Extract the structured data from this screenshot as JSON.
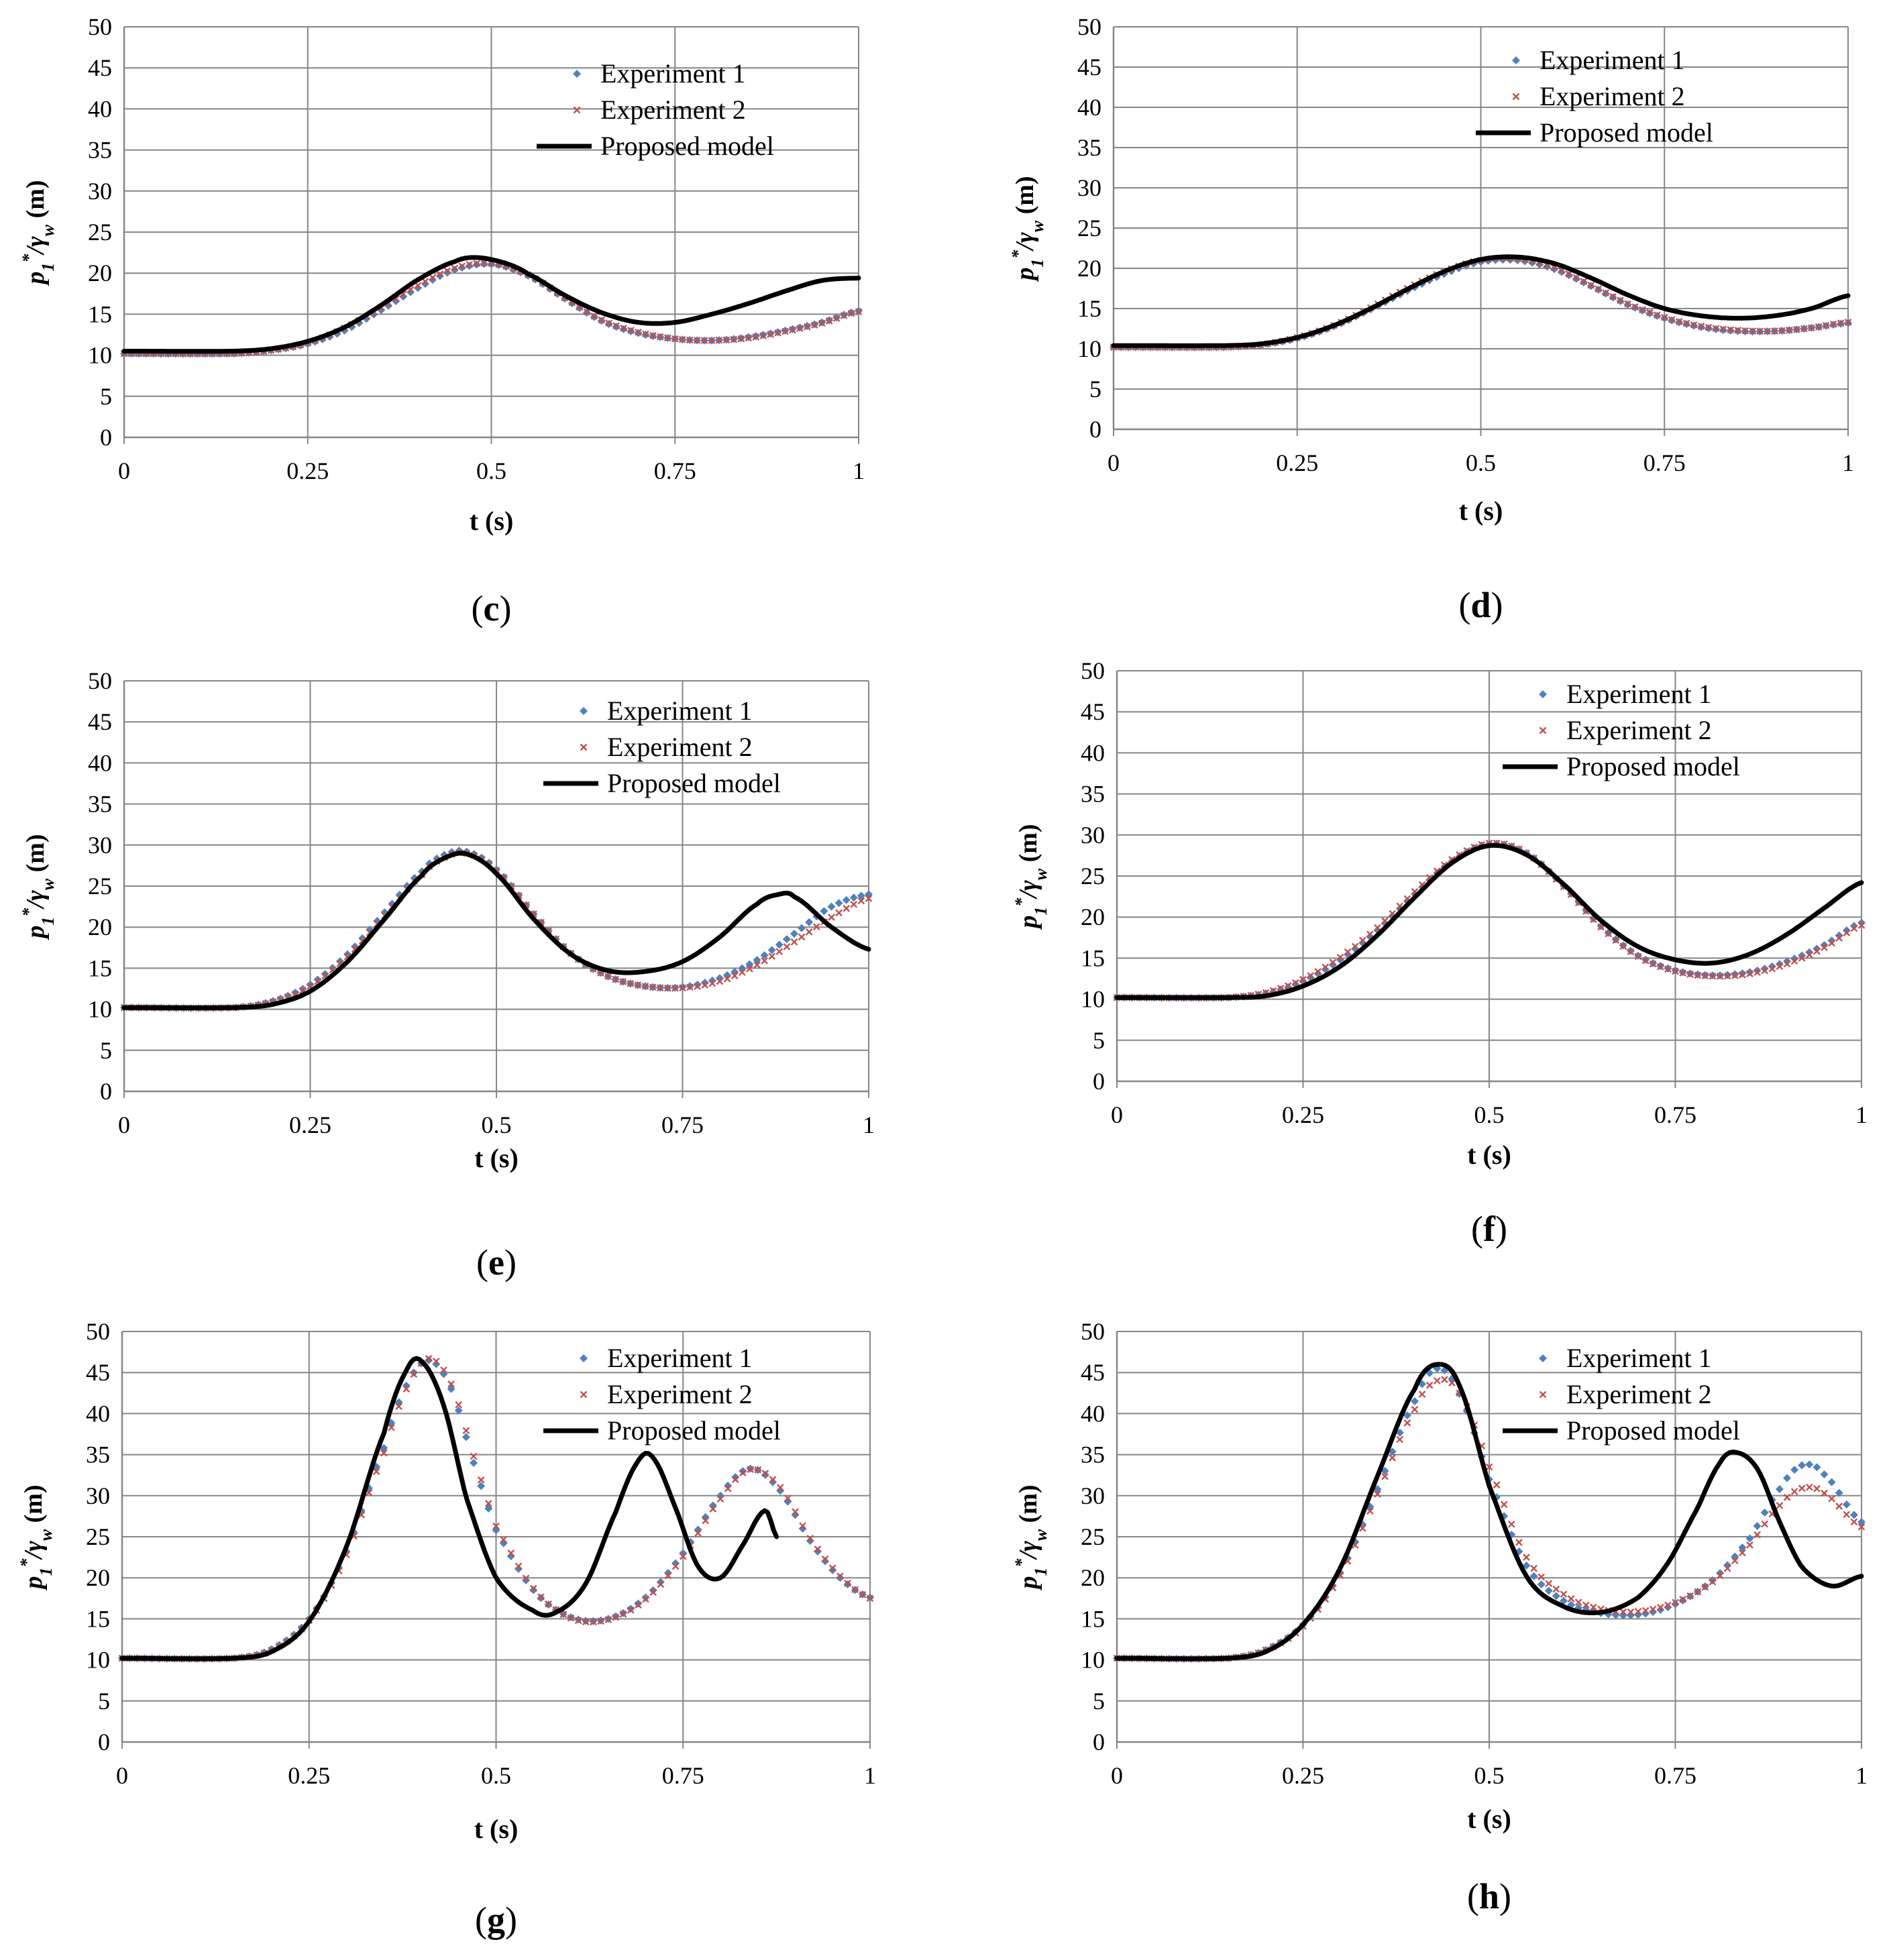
{
  "colors": {
    "exp1": "#4f81bd",
    "exp2": "#c0504d",
    "model": "#000000",
    "grid": "#868686"
  },
  "chart_data": [
    {
      "type": "line",
      "panel_label": "c",
      "xlabel": "t (s)",
      "ylabel": "p1*/γw (m)",
      "xlim": [
        0,
        1
      ],
      "ylim": [
        0,
        50
      ],
      "xticks": [
        "0",
        "0.25",
        "0.5",
        "0.75",
        "1"
      ],
      "yticks": [
        "0",
        "5",
        "10",
        "15",
        "20",
        "25",
        "30",
        "35",
        "40",
        "45",
        "50"
      ],
      "legend": [
        "Experiment 1",
        "Experiment 2",
        "Proposed model"
      ],
      "series": [
        {
          "name": "Experiment 1",
          "style": "diamond",
          "t": [
            0,
            0.15,
            0.2,
            0.25,
            0.3,
            0.35,
            0.4,
            0.45,
            0.5,
            0.55,
            0.6,
            0.65,
            0.7,
            0.75,
            0.8,
            0.85,
            0.9,
            0.95,
            1.0
          ],
          "p": [
            10.2,
            10.2,
            10.6,
            11.4,
            13.0,
            15.5,
            18.2,
            20.4,
            21.1,
            19.7,
            16.9,
            14.2,
            12.7,
            12.0,
            11.8,
            12.2,
            13.0,
            14.0,
            15.4
          ]
        },
        {
          "name": "Experiment 2",
          "style": "cross",
          "t": [
            0,
            0.15,
            0.2,
            0.25,
            0.3,
            0.35,
            0.4,
            0.45,
            0.5,
            0.55,
            0.6,
            0.65,
            0.7,
            0.75,
            0.8,
            0.85,
            0.9,
            0.95,
            1.0
          ],
          "p": [
            10.2,
            10.2,
            10.6,
            11.5,
            13.3,
            15.8,
            18.5,
            20.6,
            21.2,
            19.8,
            17.0,
            14.3,
            12.8,
            12.0,
            11.8,
            12.1,
            12.9,
            13.9,
            15.3
          ]
        },
        {
          "name": "Proposed model",
          "style": "line",
          "t": [
            0,
            0.15,
            0.2,
            0.25,
            0.3,
            0.35,
            0.4,
            0.45,
            0.48,
            0.52,
            0.55,
            0.6,
            0.65,
            0.7,
            0.75,
            0.8,
            0.85,
            0.9,
            0.95,
            1.0
          ],
          "p": [
            10.5,
            10.5,
            10.8,
            11.7,
            13.4,
            16.1,
            19.2,
            21.4,
            21.9,
            21.2,
            19.9,
            17.3,
            15.2,
            14.0,
            14.0,
            15.0,
            16.3,
            17.8,
            19.1,
            19.4
          ]
        }
      ]
    },
    {
      "type": "line",
      "panel_label": "d",
      "xlabel": "t (s)",
      "ylabel": "p1*/γw (m)",
      "xlim": [
        0,
        1
      ],
      "ylim": [
        0,
        50
      ],
      "xticks": [
        "0",
        "0.25",
        "0.5",
        "0.75",
        "1"
      ],
      "yticks": [
        "0",
        "5",
        "10",
        "15",
        "20",
        "25",
        "30",
        "35",
        "40",
        "45",
        "50"
      ],
      "legend": [
        "Experiment 1",
        "Experiment 2",
        "Proposed model"
      ],
      "series": [
        {
          "name": "Experiment 1",
          "style": "diamond",
          "t": [
            0,
            0.15,
            0.2,
            0.25,
            0.3,
            0.35,
            0.4,
            0.45,
            0.5,
            0.55,
            0.6,
            0.65,
            0.7,
            0.75,
            0.8,
            0.85,
            0.9,
            0.95,
            1.0
          ],
          "p": [
            10.2,
            10.2,
            10.5,
            11.3,
            12.8,
            14.9,
            17.2,
            19.3,
            20.8,
            21.0,
            19.9,
            17.8,
            15.5,
            13.8,
            12.7,
            12.2,
            12.2,
            12.6,
            13.2
          ]
        },
        {
          "name": "Experiment 2",
          "style": "cross",
          "t": [
            0,
            0.15,
            0.2,
            0.25,
            0.3,
            0.35,
            0.4,
            0.45,
            0.5,
            0.55,
            0.6,
            0.65,
            0.7,
            0.75,
            0.8,
            0.85,
            0.9,
            0.95,
            1.0
          ],
          "p": [
            10.2,
            10.2,
            10.5,
            11.4,
            12.9,
            15.1,
            17.5,
            19.6,
            21.0,
            21.2,
            20.1,
            17.9,
            15.6,
            13.9,
            12.8,
            12.3,
            12.2,
            12.6,
            13.3
          ]
        },
        {
          "name": "Proposed model",
          "style": "line",
          "t": [
            0,
            0.15,
            0.2,
            0.25,
            0.3,
            0.35,
            0.4,
            0.45,
            0.5,
            0.55,
            0.6,
            0.65,
            0.7,
            0.75,
            0.8,
            0.85,
            0.9,
            0.95,
            1.0
          ],
          "p": [
            10.4,
            10.4,
            10.6,
            11.4,
            12.9,
            15.0,
            17.4,
            19.6,
            21.1,
            21.4,
            20.6,
            18.8,
            16.7,
            15.0,
            14.1,
            13.8,
            14.1,
            15.0,
            16.6
          ]
        }
      ]
    },
    {
      "type": "line",
      "panel_label": "e",
      "xlabel": "t (s)",
      "ylabel": "p1*/γw (m)",
      "xlim": [
        0,
        1
      ],
      "ylim": [
        0,
        50
      ],
      "xticks": [
        "0",
        "0.25",
        "0.5",
        "0.75",
        "1"
      ],
      "yticks": [
        "0",
        "5",
        "10",
        "15",
        "20",
        "25",
        "30",
        "35",
        "40",
        "45",
        "50"
      ],
      "legend": [
        "Experiment 1",
        "Experiment 2",
        "Proposed model"
      ],
      "series": [
        {
          "name": "Experiment 1",
          "style": "diamond",
          "t": [
            0,
            0.15,
            0.2,
            0.25,
            0.3,
            0.35,
            0.4,
            0.43,
            0.46,
            0.5,
            0.55,
            0.6,
            0.65,
            0.7,
            0.75,
            0.8,
            0.85,
            0.9,
            0.95,
            1.0
          ],
          "p": [
            10.2,
            10.2,
            11.0,
            13.0,
            16.7,
            21.8,
            26.8,
            28.8,
            29.2,
            27.0,
            21.6,
            16.8,
            14.0,
            12.8,
            12.7,
            13.8,
            16.0,
            19.2,
            22.5,
            24.0
          ]
        },
        {
          "name": "Experiment 2",
          "style": "cross",
          "t": [
            0,
            0.15,
            0.2,
            0.25,
            0.3,
            0.35,
            0.4,
            0.43,
            0.46,
            0.5,
            0.55,
            0.6,
            0.65,
            0.7,
            0.75,
            0.8,
            0.85,
            0.9,
            0.95,
            1.0
          ],
          "p": [
            10.2,
            10.2,
            10.9,
            12.8,
            16.4,
            21.4,
            26.4,
            28.5,
            29.0,
            26.9,
            21.6,
            16.8,
            14.0,
            12.8,
            12.6,
            13.4,
            15.4,
            18.2,
            21.2,
            23.5
          ]
        },
        {
          "name": "Proposed model",
          "style": "line",
          "t": [
            0,
            0.15,
            0.2,
            0.25,
            0.3,
            0.35,
            0.4,
            0.43,
            0.46,
            0.5,
            0.55,
            0.6,
            0.65,
            0.7,
            0.75,
            0.8,
            0.85,
            0.88,
            0.9,
            0.95,
            1.0
          ],
          "p": [
            10.2,
            10.2,
            10.6,
            12.2,
            15.8,
            21.0,
            26.3,
            28.4,
            28.9,
            26.5,
            21.0,
            16.7,
            14.7,
            14.6,
            15.8,
            18.8,
            22.8,
            24.0,
            23.7,
            20.0,
            17.3
          ]
        }
      ]
    },
    {
      "type": "line",
      "panel_label": "f",
      "xlabel": "t (s)",
      "ylabel": "p1*/γw (m)",
      "xlim": [
        0,
        1
      ],
      "ylim": [
        0,
        50
      ],
      "xticks": [
        "0",
        "0.25",
        "0.5",
        "0.75",
        "1"
      ],
      "yticks": [
        "0",
        "5",
        "10",
        "15",
        "20",
        "25",
        "30",
        "35",
        "40",
        "45",
        "50"
      ],
      "legend": [
        "Experiment 1",
        "Experiment 2",
        "Proposed model"
      ],
      "series": [
        {
          "name": "Experiment 1",
          "style": "diamond",
          "t": [
            0,
            0.15,
            0.2,
            0.25,
            0.3,
            0.35,
            0.4,
            0.45,
            0.5,
            0.55,
            0.6,
            0.65,
            0.7,
            0.75,
            0.8,
            0.85,
            0.9,
            0.95,
            1.0
          ],
          "p": [
            10.2,
            10.2,
            10.7,
            12.2,
            14.8,
            18.4,
            22.8,
            26.8,
            28.9,
            27.8,
            23.8,
            18.9,
            15.3,
            13.5,
            12.9,
            13.3,
            14.6,
            16.6,
            19.3
          ]
        },
        {
          "name": "Experiment 2",
          "style": "cross",
          "t": [
            0,
            0.15,
            0.2,
            0.25,
            0.3,
            0.35,
            0.4,
            0.45,
            0.5,
            0.55,
            0.6,
            0.65,
            0.7,
            0.75,
            0.8,
            0.85,
            0.9,
            0.95,
            1.0
          ],
          "p": [
            10.2,
            10.2,
            10.8,
            12.4,
            15.1,
            18.7,
            23.1,
            27.0,
            29.0,
            27.8,
            23.7,
            18.8,
            15.2,
            13.4,
            12.8,
            13.1,
            14.3,
            16.3,
            19.0
          ]
        },
        {
          "name": "Proposed model",
          "style": "line",
          "t": [
            0,
            0.15,
            0.2,
            0.25,
            0.3,
            0.35,
            0.4,
            0.45,
            0.5,
            0.55,
            0.6,
            0.65,
            0.7,
            0.75,
            0.8,
            0.85,
            0.9,
            0.95,
            1.0
          ],
          "p": [
            10.2,
            10.2,
            10.4,
            11.6,
            14.0,
            17.8,
            22.4,
            26.6,
            28.7,
            27.6,
            24.0,
            19.6,
            16.4,
            14.8,
            14.4,
            15.5,
            17.9,
            21.1,
            24.2
          ]
        }
      ]
    },
    {
      "type": "line",
      "panel_label": "g",
      "xlabel": "t (s)",
      "ylabel": "p1*/γw (m)",
      "xlim": [
        0,
        1
      ],
      "ylim": [
        0,
        50
      ],
      "xticks": [
        "0",
        "0.25",
        "0.5",
        "0.75",
        "1"
      ],
      "yticks": [
        "0",
        "5",
        "10",
        "15",
        "20",
        "25",
        "30",
        "35",
        "40",
        "45",
        "50"
      ],
      "legend": [
        "Experiment 1",
        "Experiment 2",
        "Proposed model"
      ],
      "series": [
        {
          "name": "Experiment 1",
          "style": "diamond",
          "t": [
            0,
            0.15,
            0.2,
            0.25,
            0.3,
            0.35,
            0.38,
            0.41,
            0.44,
            0.47,
            0.5,
            0.55,
            0.6,
            0.65,
            0.7,
            0.75,
            0.8,
            0.84,
            0.88,
            0.92,
            0.96,
            1.0
          ],
          "p": [
            10.2,
            10.2,
            11.3,
            15.0,
            23.2,
            35.8,
            43.4,
            46.5,
            43.0,
            34.0,
            25.8,
            18.5,
            15.2,
            15.0,
            17.6,
            23.0,
            30.0,
            33.3,
            30.6,
            24.5,
            20.0,
            17.6
          ]
        },
        {
          "name": "Experiment 2",
          "style": "cross",
          "t": [
            0,
            0.15,
            0.2,
            0.25,
            0.3,
            0.35,
            0.38,
            0.41,
            0.44,
            0.47,
            0.5,
            0.55,
            0.6,
            0.65,
            0.7,
            0.75,
            0.8,
            0.84,
            0.88,
            0.92,
            0.96,
            1.0
          ],
          "p": [
            10.2,
            10.2,
            11.2,
            14.8,
            22.8,
            35.2,
            43.0,
            46.7,
            43.6,
            34.8,
            26.3,
            18.7,
            15.1,
            14.9,
            17.4,
            22.6,
            29.6,
            33.2,
            31.0,
            24.8,
            20.2,
            17.5
          ]
        },
        {
          "name": "Proposed model",
          "style": "line",
          "t": [
            0,
            0.15,
            0.2,
            0.25,
            0.3,
            0.35,
            0.38,
            0.4,
            0.43,
            0.46,
            0.5,
            0.55,
            0.58,
            0.62,
            0.66,
            0.69,
            0.71,
            0.74,
            0.77,
            0.8,
            0.83,
            0.86,
            0.875
          ],
          "p": [
            10.2,
            10.2,
            11.0,
            14.7,
            23.8,
            37.6,
            45.2,
            46.4,
            41.0,
            29.8,
            20.0,
            16.0,
            15.8,
            19.3,
            28.0,
            34.2,
            34.6,
            28.5,
            21.4,
            20.0,
            24.0,
            28.2,
            25.0
          ]
        }
      ]
    },
    {
      "type": "line",
      "panel_label": "h",
      "xlabel": "t (s)",
      "ylabel": "p1*/γw (m)",
      "xlim": [
        0,
        1
      ],
      "ylim": [
        0,
        50
      ],
      "xticks": [
        "0",
        "0.25",
        "0.5",
        "0.75",
        "1"
      ],
      "yticks": [
        "0",
        "5",
        "10",
        "15",
        "20",
        "25",
        "30",
        "35",
        "40",
        "45",
        "50"
      ],
      "legend": [
        "Experiment 1",
        "Experiment 2",
        "Proposed model"
      ],
      "series": [
        {
          "name": "Experiment 1",
          "style": "diamond",
          "t": [
            0,
            0.15,
            0.2,
            0.25,
            0.3,
            0.35,
            0.4,
            0.43,
            0.46,
            0.5,
            0.55,
            0.6,
            0.65,
            0.7,
            0.75,
            0.8,
            0.85,
            0.89,
            0.92,
            0.95,
            1.0
          ],
          "p": [
            10.2,
            10.2,
            11.2,
            14.3,
            20.6,
            30.8,
            41.5,
            45.5,
            42.4,
            32.0,
            21.5,
            17.2,
            15.7,
            15.5,
            16.8,
            19.7,
            24.8,
            30.8,
            33.7,
            32.6,
            26.8
          ]
        },
        {
          "name": "Experiment 2",
          "style": "cross",
          "t": [
            0,
            0.15,
            0.2,
            0.25,
            0.3,
            0.35,
            0.4,
            0.43,
            0.46,
            0.5,
            0.55,
            0.6,
            0.65,
            0.7,
            0.75,
            0.8,
            0.85,
            0.89,
            0.92,
            0.95,
            1.0
          ],
          "p": [
            10.2,
            10.2,
            11.2,
            14.1,
            20.3,
            30.2,
            40.5,
            44.0,
            42.5,
            33.5,
            22.5,
            18.0,
            16.2,
            15.9,
            17.0,
            19.5,
            24.0,
            28.8,
            30.9,
            30.3,
            26.2
          ]
        },
        {
          "name": "Proposed model",
          "style": "line",
          "t": [
            0,
            0.15,
            0.2,
            0.25,
            0.3,
            0.35,
            0.4,
            0.43,
            0.46,
            0.5,
            0.55,
            0.6,
            0.65,
            0.7,
            0.74,
            0.78,
            0.81,
            0.83,
            0.86,
            0.89,
            0.92,
            0.96,
            1.0
          ],
          "p": [
            10.2,
            10.2,
            11.0,
            14.3,
            21.2,
            32.4,
            43.0,
            46.0,
            43.4,
            31.2,
            20.2,
            16.5,
            15.8,
            17.6,
            21.8,
            28.5,
            34.0,
            35.3,
            33.3,
            26.8,
            21.3,
            19.0,
            20.2
          ]
        }
      ]
    }
  ]
}
